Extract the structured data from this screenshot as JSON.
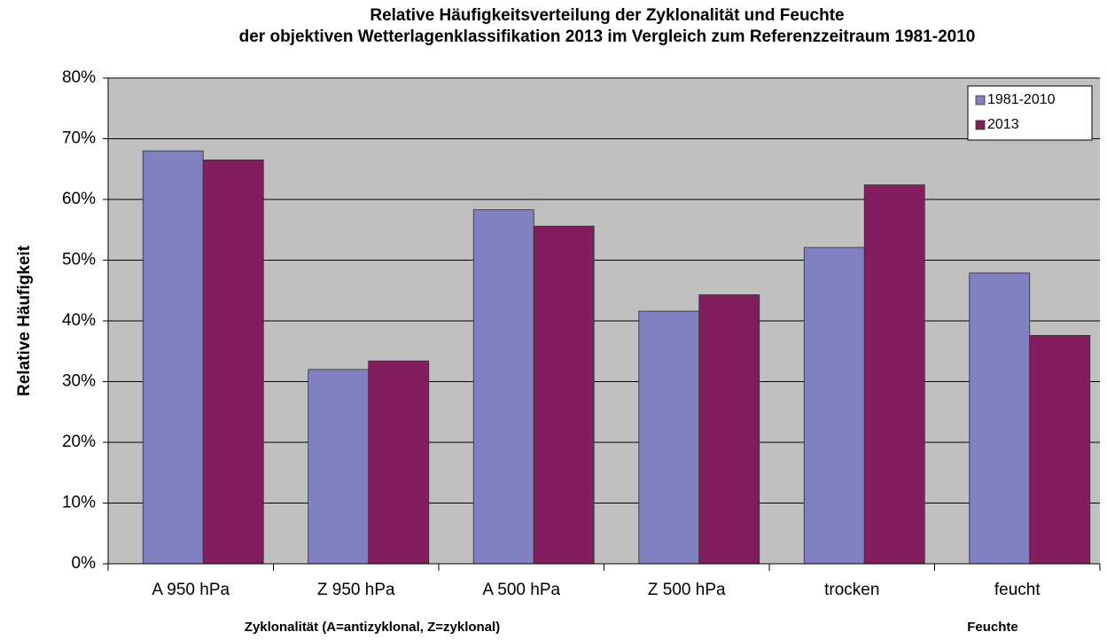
{
  "chart_data": {
    "type": "bar",
    "title": [
      "Relative Häufigkeitsverteilung der Zyklonalität und Feuchte",
      "der objektiven Wetterlagenklassifikation 2013 im Vergleich zum Referenzzeitraum 1981-2010"
    ],
    "y_label": "Relative Häufigkeit",
    "annotations": [
      "Zyklonalität (A=antizyklonal, Z=zyklonal)",
      "Feuchte"
    ],
    "categories": [
      "A 950 hPa",
      "Z 950 hPa",
      "A 500 hPa",
      "Z 500 hPa",
      "trocken",
      "feucht"
    ],
    "series": [
      {
        "name": "1981-2010",
        "color": "#8080c0",
        "values": [
          68,
          32,
          58.3,
          41.6,
          52.1,
          47.9
        ]
      },
      {
        "name": "2013",
        "color": "#821e5e",
        "values": [
          66.5,
          33.4,
          55.6,
          44.3,
          62.4,
          37.6
        ]
      }
    ],
    "ylim": [
      0,
      80
    ],
    "yticks": [
      {
        "value": 0,
        "label": "0%"
      },
      {
        "value": 10,
        "label": "10%"
      },
      {
        "value": 20,
        "label": "20%"
      },
      {
        "value": 30,
        "label": "30%"
      },
      {
        "value": 40,
        "label": "40%"
      },
      {
        "value": 50,
        "label": "50%"
      },
      {
        "value": 60,
        "label": "60%"
      },
      {
        "value": 70,
        "label": "70%"
      },
      {
        "value": 80,
        "label": "80%"
      }
    ],
    "grid": true,
    "legend": "top-right"
  }
}
